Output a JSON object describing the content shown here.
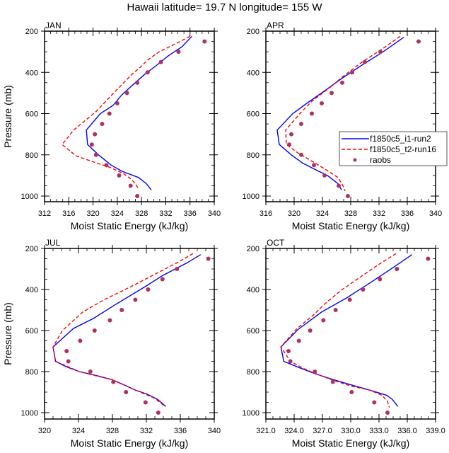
{
  "title": "Hawaii  latitude= 19.7 N longitude= 155 W",
  "colors": {
    "model1": "#0000ff",
    "model2": "#ff0000",
    "raobs": "#b03060"
  },
  "chart_data": [
    {
      "type": "line",
      "panel": "JAN",
      "title": "JAN",
      "xlabel": "Moist Static Energy (kJ/kg)",
      "ylabel": "Pressure (mb)",
      "xlim": [
        312,
        340
      ],
      "ylim": [
        200,
        1000
      ],
      "y_inverted": true,
      "xticks": [
        312,
        316,
        320,
        324,
        328,
        332,
        336,
        340
      ],
      "xtick_labels": [
        "312",
        "316",
        "320",
        "324",
        "328",
        "332",
        "336",
        "340"
      ],
      "yticks": [
        200,
        400,
        600,
        800,
        1000
      ],
      "ytick_labels": [
        "200",
        "400",
        "600",
        "800",
        "1000"
      ],
      "show_ylabel": true,
      "legend": false,
      "series": [
        {
          "name": "f1850c5_i1-run2",
          "style": "solid",
          "color": "#0000ff",
          "points": [
            [
              336.3,
              225
            ],
            [
              334.7,
              275
            ],
            [
              332.4,
              320
            ],
            [
              330.3,
              370
            ],
            [
              328.5,
              410
            ],
            [
              326.6,
              460
            ],
            [
              324.7,
              510
            ],
            [
              323.3,
              560
            ],
            [
              321.2,
              600
            ],
            [
              318.9,
              680
            ],
            [
              319.1,
              750
            ],
            [
              320.9,
              800
            ],
            [
              323.0,
              850
            ],
            [
              324.8,
              880
            ],
            [
              327.5,
              910
            ],
            [
              328.8,
              940
            ],
            [
              329.6,
              970
            ]
          ]
        },
        {
          "name": "f1850c5_t2-run16",
          "style": "dashed",
          "color": "#ff0000",
          "points": [
            [
              336.0,
              225
            ],
            [
              333.4,
              265
            ],
            [
              330.9,
              300
            ],
            [
              329.0,
              340
            ],
            [
              327.8,
              375
            ],
            [
              326.4,
              410
            ],
            [
              323.4,
              500
            ],
            [
              320.5,
              590
            ],
            [
              316.8,
              680
            ],
            [
              314.9,
              750
            ],
            [
              317.2,
              805
            ],
            [
              320.6,
              840
            ],
            [
              322.7,
              860
            ],
            [
              325.0,
              890
            ],
            [
              326.4,
              920
            ],
            [
              327.2,
              950
            ],
            [
              327.5,
              970
            ]
          ]
        },
        {
          "name": "raobs",
          "style": "markers",
          "color": "#b03060",
          "points": [
            [
              338.4,
              250
            ],
            [
              334.1,
              300
            ],
            [
              331.2,
              350
            ],
            [
              329.0,
              400
            ],
            [
              327.3,
              450
            ],
            [
              325.6,
              500
            ],
            [
              324.0,
              550
            ],
            [
              322.7,
              600
            ],
            [
              321.5,
              650
            ],
            [
              320.3,
              700
            ],
            [
              319.8,
              750
            ],
            [
              320.5,
              800
            ],
            [
              322.2,
              850
            ],
            [
              324.3,
              900
            ],
            [
              326.2,
              950
            ],
            [
              327.3,
              1000
            ]
          ]
        }
      ]
    },
    {
      "type": "line",
      "panel": "APR",
      "title": "APR",
      "xlabel": "Moist Static Energy (kJ/kg)",
      "ylabel": "",
      "xlim": [
        316,
        340
      ],
      "ylim": [
        200,
        1000
      ],
      "y_inverted": true,
      "xticks": [
        316,
        320,
        324,
        328,
        332,
        336,
        340
      ],
      "xtick_labels": [
        "316",
        "320",
        "324",
        "328",
        "332",
        "336",
        "340"
      ],
      "yticks": [
        200,
        400,
        600,
        800,
        1000
      ],
      "ytick_labels": [
        "200",
        "400",
        "600",
        "800",
        "1000"
      ],
      "show_ylabel": false,
      "legend": true,
      "legend_position": "center-right",
      "series": [
        {
          "name": "f1850c5_i1-run2",
          "style": "solid",
          "color": "#0000ff",
          "points": [
            [
              335.5,
              230
            ],
            [
              332.6,
              300
            ],
            [
              329.8,
              360
            ],
            [
              326.7,
              430
            ],
            [
              324.3,
              490
            ],
            [
              322.0,
              545
            ],
            [
              319.8,
              600
            ],
            [
              317.6,
              680
            ],
            [
              317.9,
              750
            ],
            [
              319.6,
              800
            ],
            [
              321.2,
              840
            ],
            [
              322.9,
              870
            ],
            [
              324.7,
              900
            ],
            [
              326.2,
              940
            ],
            [
              326.7,
              970
            ]
          ]
        },
        {
          "name": "f1850c5_t2-run16",
          "style": "dashed",
          "color": "#ff0000",
          "points": [
            [
              335.0,
              225
            ],
            [
              332.3,
              290
            ],
            [
              329.6,
              350
            ],
            [
              326.9,
              420
            ],
            [
              325.0,
              475
            ],
            [
              322.5,
              540
            ],
            [
              320.8,
              600
            ],
            [
              318.8,
              680
            ],
            [
              318.9,
              750
            ],
            [
              320.5,
              790
            ],
            [
              322.0,
              820
            ],
            [
              324.4,
              870
            ],
            [
              326.2,
              910
            ],
            [
              326.9,
              950
            ],
            [
              327.2,
              975
            ]
          ]
        },
        {
          "name": "raobs",
          "style": "markers",
          "color": "#b03060",
          "points": [
            [
              337.6,
              250
            ],
            [
              332.2,
              300
            ],
            [
              330.0,
              350
            ],
            [
              328.2,
              400
            ],
            [
              326.8,
              450
            ],
            [
              325.3,
              500
            ],
            [
              323.9,
              550
            ],
            [
              322.5,
              600
            ],
            [
              321.0,
              650
            ],
            [
              319.6,
              700
            ],
            [
              319.3,
              750
            ],
            [
              321.0,
              800
            ],
            [
              322.8,
              850
            ],
            [
              324.3,
              900
            ],
            [
              326.3,
              950
            ],
            [
              327.6,
              1000
            ]
          ]
        }
      ]
    },
    {
      "type": "line",
      "panel": "JUL",
      "title": "JUL",
      "xlabel": "Moist Static Energy (kJ/kg)",
      "ylabel": "Pressure (mb)",
      "xlim": [
        320,
        340
      ],
      "ylim": [
        200,
        1000
      ],
      "y_inverted": true,
      "xticks": [
        320,
        324,
        328,
        332,
        336,
        340
      ],
      "xtick_labels": [
        "320",
        "324",
        "328",
        "332",
        "336",
        "340"
      ],
      "yticks": [
        200,
        400,
        600,
        800,
        1000
      ],
      "ytick_labels": [
        "200",
        "400",
        "600",
        "800",
        "1000"
      ],
      "show_ylabel": true,
      "legend": false,
      "series": [
        {
          "name": "f1850c5_i1-run2",
          "style": "solid",
          "color": "#0000ff",
          "points": [
            [
              338.4,
              230
            ],
            [
              336.8,
              270
            ],
            [
              334.0,
              330
            ],
            [
              331.7,
              390
            ],
            [
              328.1,
              480
            ],
            [
              325.8,
              540
            ],
            [
              323.4,
              590
            ],
            [
              321.0,
              680
            ],
            [
              321.3,
              750
            ],
            [
              322.5,
              775
            ],
            [
              324.1,
              800
            ],
            [
              326.2,
              820
            ],
            [
              328.0,
              840
            ],
            [
              329.4,
              865
            ],
            [
              330.7,
              890
            ],
            [
              332.1,
              910
            ],
            [
              333.3,
              935
            ],
            [
              334.3,
              970
            ]
          ]
        },
        {
          "name": "f1850c5_t2-run16",
          "style": "dashed",
          "color": "#ff0000",
          "points": [
            [
              337.5,
              225
            ],
            [
              335.6,
              270
            ],
            [
              332.8,
              330
            ],
            [
              330.0,
              390
            ],
            [
              327.0,
              450
            ],
            [
              324.5,
              510
            ],
            [
              322.1,
              600
            ],
            [
              321.0,
              680
            ],
            [
              321.3,
              750
            ],
            [
              324.1,
              800
            ],
            [
              328.0,
              840
            ],
            [
              330.7,
              890
            ],
            [
              333.0,
              930
            ],
            [
              334.2,
              970
            ]
          ]
        },
        {
          "name": "raobs",
          "style": "markers",
          "color": "#b03060",
          "points": [
            [
              339.3,
              250
            ],
            [
              335.6,
              300
            ],
            [
              333.9,
              350
            ],
            [
              332.2,
              400
            ],
            [
              330.7,
              450
            ],
            [
              329.1,
              500
            ],
            [
              327.7,
              550
            ],
            [
              325.9,
              600
            ],
            [
              324.2,
              650
            ],
            [
              322.6,
              700
            ],
            [
              322.8,
              750
            ],
            [
              325.4,
              800
            ],
            [
              328.1,
              850
            ],
            [
              329.6,
              900
            ],
            [
              331.9,
              950
            ],
            [
              333.4,
              1000
            ]
          ]
        }
      ]
    },
    {
      "type": "line",
      "panel": "OCT",
      "title": "OCT",
      "xlabel": "Moist Static Energy (kJ/kg)",
      "ylabel": "",
      "xlim": [
        321,
        339
      ],
      "ylim": [
        200,
        1000
      ],
      "y_inverted": true,
      "xticks": [
        321,
        324,
        327,
        330,
        333,
        336,
        339
      ],
      "xtick_labels": [
        "321.0",
        "324.0",
        "327.0",
        "330.0",
        "333.0",
        "336.0",
        "339.0"
      ],
      "yticks": [
        200,
        400,
        600,
        800,
        1000
      ],
      "ytick_labels": [
        "200",
        "400",
        "600",
        "800",
        "1000"
      ],
      "show_ylabel": false,
      "legend": false,
      "series": [
        {
          "name": "f1850c5_i1-run2",
          "style": "solid",
          "color": "#0000ff",
          "points": [
            [
              336.5,
              230
            ],
            [
              334.6,
              290
            ],
            [
              332.3,
              360
            ],
            [
              329.6,
              440
            ],
            [
              326.9,
              510
            ],
            [
              324.4,
              595
            ],
            [
              322.6,
              680
            ],
            [
              322.9,
              750
            ],
            [
              324.5,
              780
            ],
            [
              326.2,
              810
            ],
            [
              328.2,
              840
            ],
            [
              330.1,
              865
            ],
            [
              332.0,
              890
            ],
            [
              333.8,
              915
            ],
            [
              334.4,
              935
            ],
            [
              335.0,
              970
            ]
          ]
        },
        {
          "name": "f1850c5_t2-run16",
          "style": "dashed",
          "color": "#ff0000",
          "points": [
            [
              334.8,
              225
            ],
            [
              332.9,
              280
            ],
            [
              331.0,
              340
            ],
            [
              329.1,
              400
            ],
            [
              327.5,
              460
            ],
            [
              325.9,
              530
            ],
            [
              324.3,
              590
            ],
            [
              322.6,
              680
            ],
            [
              323.6,
              750
            ],
            [
              325.0,
              785
            ],
            [
              326.3,
              810
            ],
            [
              328.0,
              840
            ],
            [
              330.0,
              870
            ],
            [
              332.0,
              890
            ],
            [
              333.3,
              915
            ],
            [
              333.9,
              945
            ],
            [
              334.1,
              975
            ]
          ]
        },
        {
          "name": "raobs",
          "style": "markers",
          "color": "#b03060",
          "points": [
            [
              338.2,
              250
            ],
            [
              334.9,
              300
            ],
            [
              333.1,
              350
            ],
            [
              331.3,
              400
            ],
            [
              329.9,
              450
            ],
            [
              328.4,
              500
            ],
            [
              327.1,
              550
            ],
            [
              325.7,
              600
            ],
            [
              324.5,
              650
            ],
            [
              323.4,
              700
            ],
            [
              323.6,
              750
            ],
            [
              326.2,
              800
            ],
            [
              328.1,
              850
            ],
            [
              330.1,
              900
            ],
            [
              332.5,
              950
            ],
            [
              333.9,
              1000
            ]
          ]
        }
      ]
    }
  ]
}
